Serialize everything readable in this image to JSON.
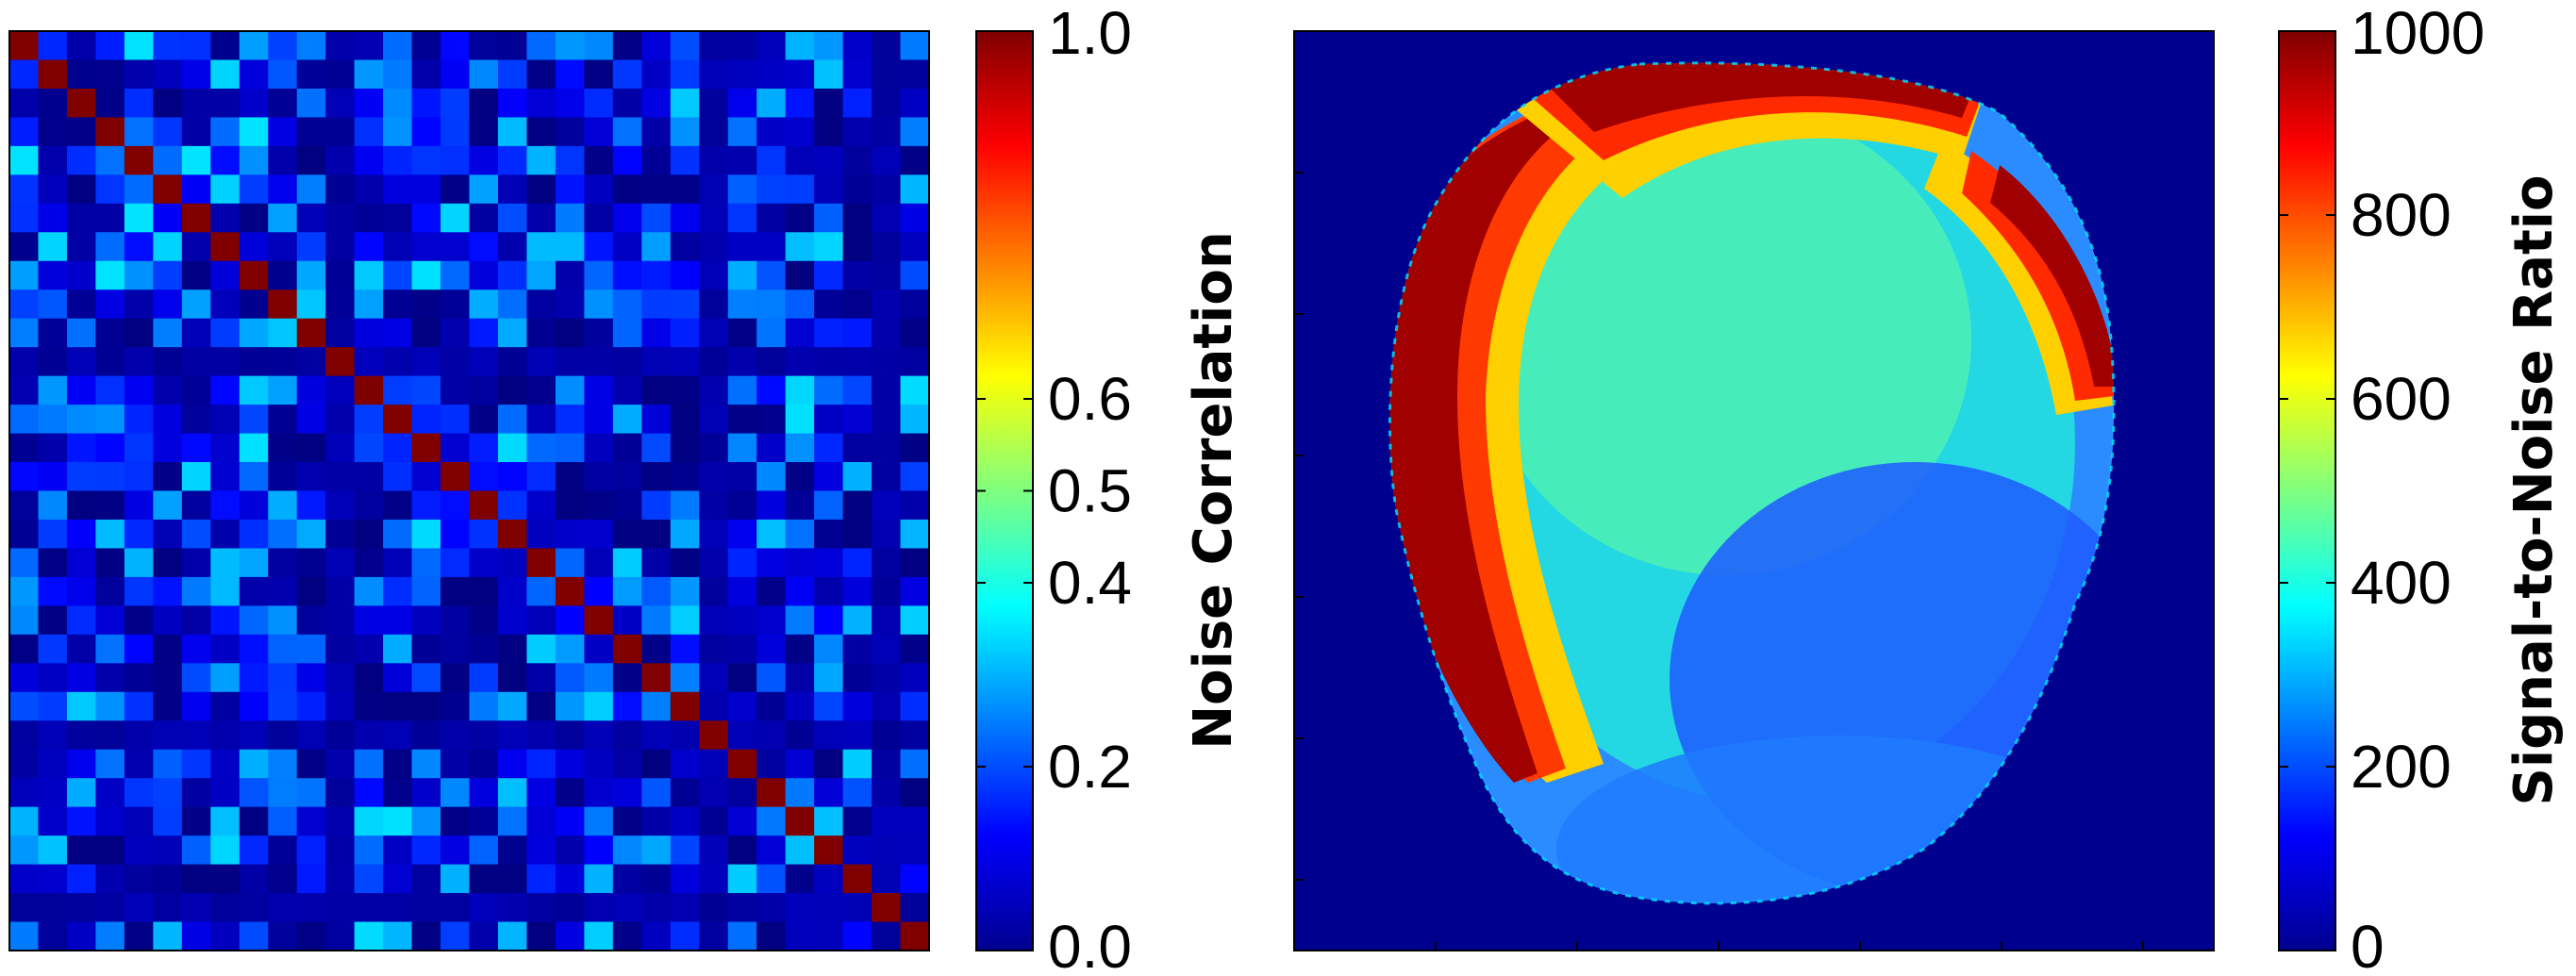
{
  "chart_data": [
    {
      "type": "heatmap",
      "title": "",
      "xlabel": "",
      "ylabel": "",
      "matrix_size": 32,
      "diagonal_value": 1.0,
      "off_diagonal_range": [
        0.0,
        0.35
      ],
      "colormap": "jet",
      "colorbar": {
        "label": "Noise Correlation",
        "range": [
          0.0,
          1.0
        ],
        "ticks": [
          {
            "value": 0.0,
            "label": "0.0"
          },
          {
            "value": 0.2,
            "label": "0.2"
          },
          {
            "value": 0.4,
            "label": "0.4"
          },
          {
            "value": 0.5,
            "label": "0.5"
          },
          {
            "value": 0.6,
            "label": "0.6"
          },
          {
            "value": 1.0,
            "label": "1.0"
          }
        ]
      }
    },
    {
      "type": "heatmap",
      "title": "",
      "xlabel": "",
      "ylabel": "",
      "colormap": "jet",
      "background_value": 0,
      "colorbar": {
        "label": "Signal-to-Noise Ratio",
        "range": [
          0,
          1000
        ],
        "ticks": [
          {
            "value": 0,
            "label": "0"
          },
          {
            "value": 200,
            "label": "200"
          },
          {
            "value": 400,
            "label": "400"
          },
          {
            "value": 600,
            "label": "600"
          },
          {
            "value": 800,
            "label": "800"
          },
          {
            "value": 1000,
            "label": "1000"
          }
        ]
      }
    }
  ]
}
